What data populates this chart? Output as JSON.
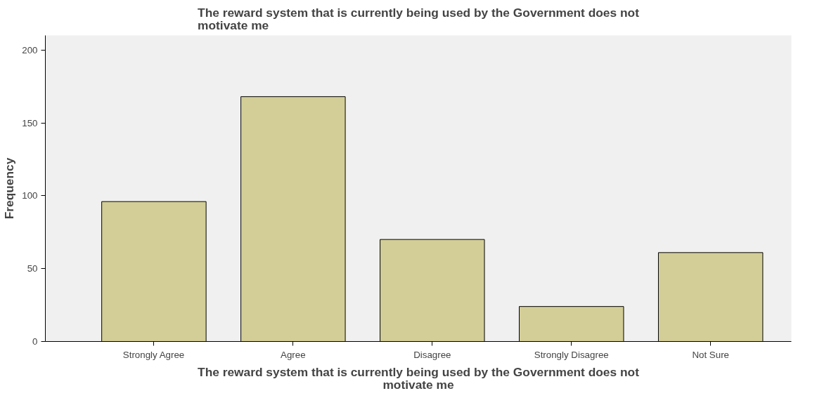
{
  "chart_data": {
    "type": "bar",
    "title": "The reward system that is currently being used by the Government does not motivate me",
    "xlabel": "The reward system that is currently being used by the Government does not motivate me",
    "ylabel": "Frequency",
    "categories": [
      "Strongly Agree",
      "Agree",
      "Disagree",
      "Strongly Disagree",
      "Not Sure"
    ],
    "values": [
      96,
      168,
      70,
      24,
      61
    ],
    "color": "#d3ce97",
    "ylim": [
      0,
      210
    ],
    "yticks": [
      0,
      50,
      100,
      150,
      200
    ],
    "grid": false
  }
}
